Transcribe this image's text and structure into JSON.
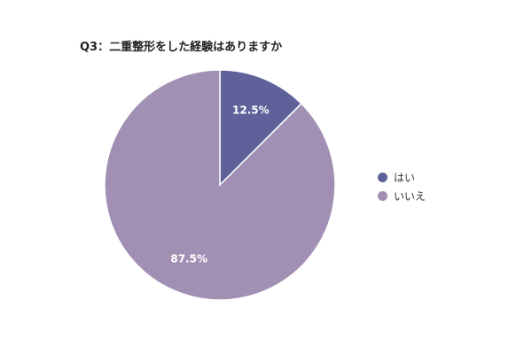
{
  "title": "Q3：二重整形をした経験はありますか",
  "chart_data": {
    "type": "pie",
    "title": "Q3：二重整形をした経験はありますか",
    "categories": [
      "はい",
      "いいえ"
    ],
    "values": [
      12.5,
      87.5
    ],
    "value_labels": [
      "12.5%",
      "87.5%"
    ],
    "unit": "%",
    "colors": [
      "#5f619b",
      "#a290b4"
    ],
    "legend_position": "right"
  }
}
